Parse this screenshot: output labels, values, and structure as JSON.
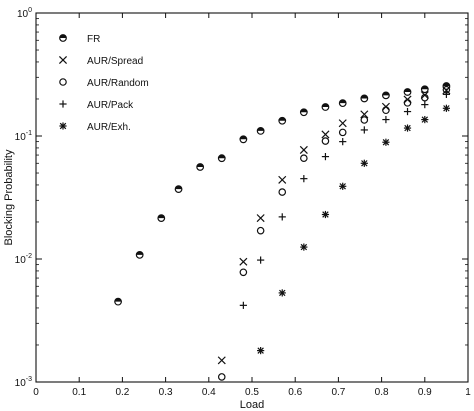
{
  "chart_data": {
    "type": "scatter",
    "xlabel": "Load",
    "ylabel": "Blocking Probability",
    "xlim": [
      0,
      1
    ],
    "ylim": [
      0.001,
      1
    ],
    "yscale": "log",
    "grid": false,
    "legend_position": "top-left",
    "x_ticks": [
      "0",
      "0.1",
      "0.2",
      "0.3",
      "0.4",
      "0.5",
      "0.6",
      "0.7",
      "0.8",
      "0.9",
      "1"
    ],
    "y_ticks": [
      {
        "base": "10",
        "exp": "0",
        "value": 1
      },
      {
        "base": "10",
        "exp": "-1",
        "value": 0.1
      },
      {
        "base": "10",
        "exp": "-2",
        "value": 0.01
      },
      {
        "base": "10",
        "exp": "-3",
        "value": 0.001
      }
    ],
    "series": [
      {
        "name": "FR",
        "marker": "filled-circle",
        "points": [
          [
            0.19,
            0.0045
          ],
          [
            0.24,
            0.0108
          ],
          [
            0.29,
            0.0215
          ],
          [
            0.33,
            0.037
          ],
          [
            0.38,
            0.056
          ],
          [
            0.43,
            0.066
          ],
          [
            0.48,
            0.094
          ],
          [
            0.52,
            0.11
          ],
          [
            0.57,
            0.133
          ],
          [
            0.62,
            0.156
          ],
          [
            0.67,
            0.172
          ],
          [
            0.71,
            0.185
          ],
          [
            0.76,
            0.202
          ],
          [
            0.81,
            0.214
          ],
          [
            0.86,
            0.228
          ],
          [
            0.9,
            0.24
          ],
          [
            0.95,
            0.255
          ]
        ]
      },
      {
        "name": "AUR/Spread",
        "marker": "x",
        "points": [
          [
            0.43,
            0.0015
          ],
          [
            0.48,
            0.0095
          ],
          [
            0.52,
            0.0215
          ],
          [
            0.57,
            0.044
          ],
          [
            0.62,
            0.077
          ],
          [
            0.67,
            0.103
          ],
          [
            0.71,
            0.127
          ],
          [
            0.76,
            0.15
          ],
          [
            0.81,
            0.173
          ],
          [
            0.86,
            0.198
          ],
          [
            0.9,
            0.215
          ],
          [
            0.95,
            0.235
          ]
        ]
      },
      {
        "name": "AUR/Random",
        "marker": "open-circle",
        "points": [
          [
            0.43,
            0.0011
          ],
          [
            0.48,
            0.0078
          ],
          [
            0.52,
            0.017
          ],
          [
            0.57,
            0.035
          ],
          [
            0.62,
            0.066
          ],
          [
            0.67,
            0.091
          ],
          [
            0.71,
            0.107
          ],
          [
            0.76,
            0.135
          ],
          [
            0.81,
            0.162
          ],
          [
            0.86,
            0.186
          ],
          [
            0.9,
            0.205
          ],
          [
            0.95,
            0.238
          ]
        ]
      },
      {
        "name": "AUR/Pack",
        "marker": "plus",
        "points": [
          [
            0.48,
            0.0042
          ],
          [
            0.52,
            0.0098
          ],
          [
            0.57,
            0.022
          ],
          [
            0.62,
            0.045
          ],
          [
            0.67,
            0.068
          ],
          [
            0.71,
            0.09
          ],
          [
            0.76,
            0.112
          ],
          [
            0.81,
            0.136
          ],
          [
            0.86,
            0.158
          ],
          [
            0.9,
            0.18
          ],
          [
            0.95,
            0.218
          ]
        ]
      },
      {
        "name": "AUR/Exh.",
        "marker": "asterisk",
        "points": [
          [
            0.52,
            0.0018
          ],
          [
            0.57,
            0.0053
          ],
          [
            0.62,
            0.0125
          ],
          [
            0.67,
            0.023
          ],
          [
            0.71,
            0.039
          ],
          [
            0.76,
            0.06
          ],
          [
            0.81,
            0.089
          ],
          [
            0.86,
            0.116
          ],
          [
            0.9,
            0.136
          ],
          [
            0.95,
            0.168
          ]
        ]
      }
    ]
  }
}
